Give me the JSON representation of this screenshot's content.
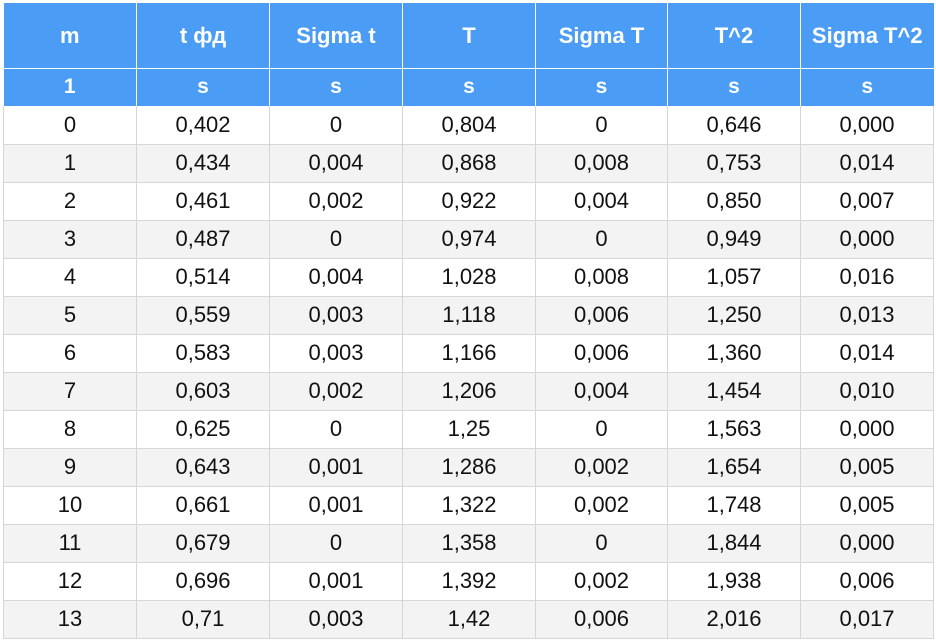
{
  "table": {
    "headers": [
      "m",
      "t фд",
      "Sigma t",
      "T",
      "Sigma T",
      "T^2",
      "Sigma T^2"
    ],
    "units": [
      "1",
      "s",
      "s",
      "s",
      "s",
      "s",
      "s"
    ],
    "rows": [
      [
        "0",
        "0,402",
        "0",
        "0,804",
        "0",
        "0,646",
        "0,000"
      ],
      [
        "1",
        "0,434",
        "0,004",
        "0,868",
        "0,008",
        "0,753",
        "0,014"
      ],
      [
        "2",
        "0,461",
        "0,002",
        "0,922",
        "0,004",
        "0,850",
        "0,007"
      ],
      [
        "3",
        "0,487",
        "0",
        "0,974",
        "0",
        "0,949",
        "0,000"
      ],
      [
        "4",
        "0,514",
        "0,004",
        "1,028",
        "0,008",
        "1,057",
        "0,016"
      ],
      [
        "5",
        "0,559",
        "0,003",
        "1,118",
        "0,006",
        "1,250",
        "0,013"
      ],
      [
        "6",
        "0,583",
        "0,003",
        "1,166",
        "0,006",
        "1,360",
        "0,014"
      ],
      [
        "7",
        "0,603",
        "0,002",
        "1,206",
        "0,004",
        "1,454",
        "0,010"
      ],
      [
        "8",
        "0,625",
        "0",
        "1,25",
        "0",
        "1,563",
        "0,000"
      ],
      [
        "9",
        "0,643",
        "0,001",
        "1,286",
        "0,002",
        "1,654",
        "0,005"
      ],
      [
        "10",
        "0,661",
        "0,001",
        "1,322",
        "0,002",
        "1,748",
        "0,005"
      ],
      [
        "11",
        "0,679",
        "0",
        "1,358",
        "0",
        "1,844",
        "0,000"
      ],
      [
        "12",
        "0,696",
        "0,001",
        "1,392",
        "0,002",
        "1,938",
        "0,006"
      ],
      [
        "13",
        "0,71",
        "0,003",
        "1,42",
        "0,006",
        "2,016",
        "0,017"
      ]
    ]
  },
  "colors": {
    "header_bg": "#4a9cf5",
    "header_text": "#ffffff",
    "row_alt_bg": "#f3f3f3",
    "grid_line": "#d6d6d6"
  }
}
